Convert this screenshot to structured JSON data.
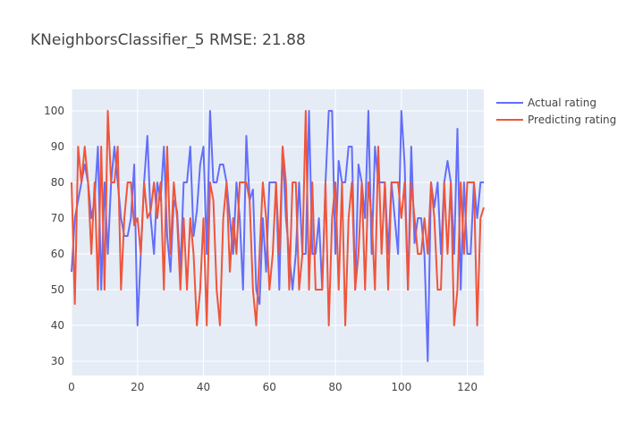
{
  "chart_data": {
    "type": "line",
    "title": "KNeighborsClassifier_5 RMSE: 21.88",
    "xlim": [
      0,
      125
    ],
    "ylim": [
      26,
      106
    ],
    "xticks": [
      0,
      20,
      40,
      60,
      80,
      100,
      120
    ],
    "yticks": [
      30,
      40,
      50,
      60,
      70,
      80,
      90,
      100
    ],
    "grid": true,
    "legend_position": "top-right",
    "series": [
      {
        "name": "Actual rating",
        "color": "#636efa",
        "y": [
          55,
          70,
          75,
          80,
          85,
          80,
          70,
          75,
          90,
          50,
          80,
          60,
          80,
          90,
          80,
          70,
          65,
          65,
          70,
          85,
          40,
          60,
          80,
          93,
          70,
          60,
          80,
          75,
          90,
          65,
          55,
          75,
          72,
          55,
          80,
          80,
          90,
          65,
          72,
          85,
          90,
          60,
          100,
          80,
          80,
          85,
          85,
          80,
          70,
          60,
          80,
          70,
          50,
          93,
          75,
          78,
          50,
          46,
          70,
          55,
          80,
          80,
          80,
          50,
          90,
          70,
          60,
          50,
          60,
          80,
          60,
          60,
          100,
          60,
          60,
          70,
          50,
          80,
          100,
          100,
          60,
          86,
          80,
          80,
          90,
          90,
          50,
          85,
          80,
          70,
          100,
          60,
          90,
          80,
          80,
          80,
          60,
          80,
          70,
          60,
          100,
          85,
          50,
          90,
          63,
          70,
          70,
          60,
          30,
          80,
          73,
          80,
          60,
          80,
          86,
          80,
          60,
          95,
          50,
          80,
          60,
          60,
          80,
          70,
          80,
          80
        ]
      },
      {
        "name": "Predicting rating",
        "color": "#ef553b",
        "y": [
          80,
          46,
          90,
          80,
          90,
          80,
          60,
          80,
          50,
          90,
          50,
          100,
          80,
          80,
          90,
          50,
          70,
          80,
          80,
          68,
          70,
          60,
          80,
          70,
          72,
          80,
          70,
          80,
          50,
          90,
          60,
          80,
          70,
          50,
          70,
          50,
          70,
          60,
          40,
          50,
          70,
          40,
          80,
          75,
          50,
          40,
          70,
          80,
          55,
          70,
          60,
          80,
          80,
          80,
          75,
          50,
          40,
          60,
          80,
          70,
          50,
          60,
          80,
          60,
          90,
          80,
          50,
          80,
          80,
          50,
          60,
          100,
          50,
          80,
          50,
          50,
          50,
          80,
          40,
          70,
          80,
          50,
          80,
          40,
          70,
          80,
          50,
          60,
          80,
          50,
          80,
          70,
          50,
          90,
          60,
          80,
          50,
          80,
          80,
          80,
          70,
          80,
          50,
          80,
          70,
          60,
          60,
          70,
          60,
          80,
          70,
          50,
          50,
          80,
          60,
          80,
          40,
          50,
          80,
          60,
          80,
          80,
          80,
          40,
          70,
          73
        ]
      }
    ]
  }
}
